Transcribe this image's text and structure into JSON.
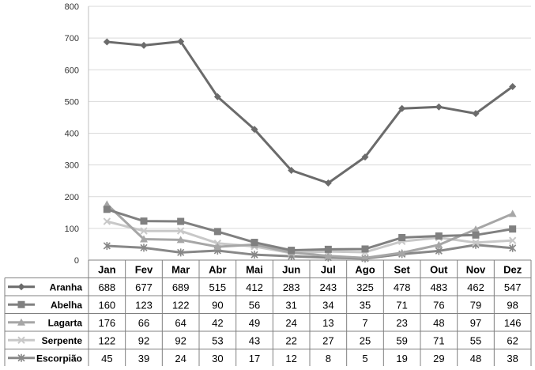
{
  "chart_data": {
    "type": "line",
    "title": "",
    "xlabel": "",
    "ylabel": "",
    "ylim": [
      0,
      800
    ],
    "yticks": [
      0,
      100,
      200,
      300,
      400,
      500,
      600,
      700,
      800
    ],
    "grid": "horizontal",
    "legend": "data-table-left",
    "categories": [
      "Jan",
      "Fev",
      "Mar",
      "Abr",
      "Mai",
      "Jun",
      "Jul",
      "Ago",
      "Set",
      "Out",
      "Nov",
      "Dez"
    ],
    "series": [
      {
        "name": "Aranha",
        "marker": "diamond",
        "color": "#6b6b6b",
        "values": [
          688,
          677,
          689,
          515,
          412,
          283,
          243,
          325,
          478,
          483,
          462,
          547
        ]
      },
      {
        "name": "Abelha",
        "marker": "square",
        "color": "#808080",
        "values": [
          160,
          123,
          122,
          90,
          56,
          31,
          34,
          35,
          71,
          76,
          79,
          98
        ]
      },
      {
        "name": "Lagarta",
        "marker": "triangle",
        "color": "#a6a6a6",
        "values": [
          176,
          66,
          64,
          42,
          49,
          24,
          13,
          7,
          23,
          48,
          97,
          146
        ]
      },
      {
        "name": "Serpente",
        "marker": "x",
        "color": "#c8c8c8",
        "values": [
          122,
          92,
          92,
          53,
          43,
          22,
          27,
          25,
          59,
          71,
          55,
          62
        ]
      },
      {
        "name": "Escorpião",
        "marker": "star",
        "color": "#888888",
        "values": [
          45,
          39,
          24,
          30,
          17,
          12,
          8,
          5,
          19,
          29,
          48,
          38
        ]
      }
    ]
  }
}
